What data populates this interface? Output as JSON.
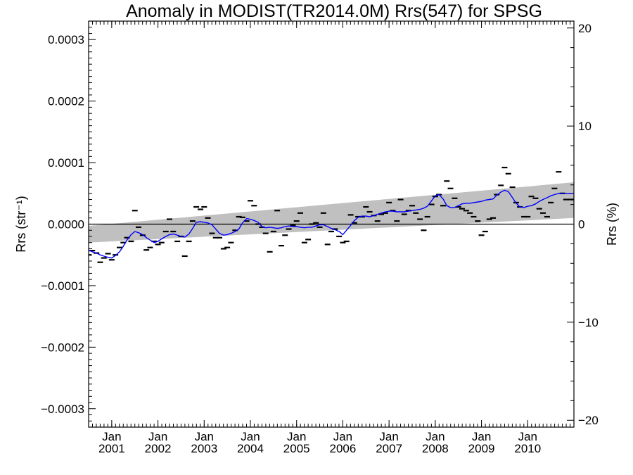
{
  "chart_data": {
    "type": "line",
    "title": "Anomaly in MODIST(TR2014.0M) Rrs(547) for SPSG",
    "ylabel": "Rrs (str⁻¹)",
    "y2label": "Rrs (%)",
    "xlabel": "",
    "ylim": [
      -0.00033,
      0.00033
    ],
    "y2lim": [
      -20.7,
      20.7
    ],
    "xlim": [
      2000.5,
      2011.0
    ],
    "yticks": [
      -0.0003,
      -0.0002,
      -0.0001,
      0.0,
      0.0001,
      0.0002,
      0.0003
    ],
    "yticklabels": [
      "−0.0003",
      "−0.0002",
      "−0.0001",
      "0.0000",
      "0.0001",
      "0.0002",
      "0.0003"
    ],
    "y2ticks": [
      -20,
      -10,
      0,
      10,
      20
    ],
    "y2ticklabels": [
      "−20",
      "−10",
      "0",
      "10",
      "20"
    ],
    "xticks": [
      {
        "value": 2001,
        "month": "Jan",
        "year": "2001"
      },
      {
        "value": 2002,
        "month": "Jan",
        "year": "2002"
      },
      {
        "value": 2003,
        "month": "Jan",
        "year": "2003"
      },
      {
        "value": 2004,
        "month": "Jan",
        "year": "2004"
      },
      {
        "value": 2005,
        "month": "Jan",
        "year": "2005"
      },
      {
        "value": 2006,
        "month": "Jan",
        "year": "2006"
      },
      {
        "value": 2007,
        "month": "Jan",
        "year": "2007"
      },
      {
        "value": 2008,
        "month": "Jan",
        "year": "2008"
      },
      {
        "value": 2009,
        "month": "Jan",
        "year": "2009"
      },
      {
        "value": 2010,
        "month": "Jan",
        "year": "2010"
      }
    ],
    "zero_line": 0,
    "band": {
      "color": "#c0c0c0",
      "upper": [
        [
          2000.5,
          -3e-06
        ],
        [
          2011.0,
          6.8e-05
        ]
      ],
      "lower": [
        [
          2000.5,
          -3e-05
        ],
        [
          2011.0,
          1e-05
        ]
      ]
    },
    "series": [
      {
        "type": "line",
        "color": "#0000ff",
        "x": [
          2000.5,
          2000.58,
          2000.67,
          2000.75,
          2000.83,
          2000.92,
          2001.0,
          2001.08,
          2001.17,
          2001.25,
          2001.33,
          2001.42,
          2001.5,
          2001.58,
          2001.67,
          2001.75,
          2001.83,
          2001.92,
          2002.0,
          2002.08,
          2002.17,
          2002.25,
          2002.33,
          2002.42,
          2002.5,
          2002.58,
          2002.67,
          2002.75,
          2002.83,
          2002.92,
          2003.0,
          2003.08,
          2003.17,
          2003.25,
          2003.33,
          2003.42,
          2003.5,
          2003.58,
          2003.67,
          2003.75,
          2003.83,
          2003.92,
          2004.0,
          2004.08,
          2004.17,
          2004.25,
          2004.33,
          2004.42,
          2004.5,
          2004.58,
          2004.67,
          2004.75,
          2004.83,
          2004.92,
          2005.0,
          2005.08,
          2005.17,
          2005.25,
          2005.33,
          2005.42,
          2005.5,
          2005.58,
          2005.67,
          2005.75,
          2005.83,
          2005.92,
          2006.0,
          2006.08,
          2006.17,
          2006.25,
          2006.33,
          2006.42,
          2006.5,
          2006.58,
          2006.67,
          2006.75,
          2006.83,
          2006.92,
          2007.0,
          2007.08,
          2007.17,
          2007.25,
          2007.33,
          2007.42,
          2007.5,
          2007.58,
          2007.67,
          2007.75,
          2007.83,
          2007.92,
          2008.0,
          2008.08,
          2008.17,
          2008.25,
          2008.33,
          2008.42,
          2008.5,
          2008.58,
          2008.67,
          2008.75,
          2008.83,
          2008.92,
          2009.0,
          2009.08,
          2009.17,
          2009.25,
          2009.33,
          2009.42,
          2009.5,
          2009.58,
          2009.67,
          2009.75,
          2009.83,
          2009.92,
          2010.0,
          2010.08,
          2010.17,
          2010.25,
          2010.33,
          2010.42,
          2010.5,
          2010.58,
          2010.67,
          2010.75,
          2010.83,
          2010.92,
          2011.0
        ],
        "y": [
          -4.2e-05,
          -4.5e-05,
          -4.7e-05,
          -5e-05,
          -5.2e-05,
          -5.4e-05,
          -5.5e-05,
          -5.1e-05,
          -4.5e-05,
          -3.6e-05,
          -2.6e-05,
          -1.7e-05,
          -1.2e-05,
          -1.4e-05,
          -1.7e-05,
          -2.2e-05,
          -2.6e-05,
          -3e-05,
          -2.8e-05,
          -2.4e-05,
          -2e-05,
          -1.7e-05,
          -1.6e-05,
          -1.8e-05,
          -2e-05,
          -2.1e-05,
          -1.6e-05,
          -7e-06,
          3e-06,
          4e-06,
          3e-06,
          2e-06,
          -1e-06,
          -8e-06,
          -1.5e-05,
          -1.8e-05,
          -1.7e-05,
          -1.5e-05,
          -1.2e-05,
          -8e-06,
          2e-06,
          9e-06,
          8e-06,
          6e-06,
          3e-06,
          -4e-06,
          -6e-06,
          -5e-06,
          -6e-06,
          -7e-06,
          -6e-06,
          -4e-06,
          -3e-06,
          -4e-06,
          -4e-06,
          -5e-06,
          -6e-06,
          -5e-06,
          -5e-06,
          -3e-06,
          -1e-06,
          -1e-06,
          -4e-06,
          -7e-06,
          -9e-06,
          -1.2e-05,
          -1.7e-05,
          -1e-05,
          -2e-06,
          6e-06,
          1.1e-05,
          1.3e-05,
          1.3e-05,
          1.2e-05,
          1.4e-05,
          1.6e-05,
          1.8e-05,
          2e-05,
          2.1e-05,
          2.1e-05,
          2e-05,
          2e-05,
          2e-05,
          2.1e-05,
          2.2e-05,
          2.3e-05,
          2.4e-05,
          2.6e-05,
          2.9e-05,
          3.8e-05,
          4.6e-05,
          4.8e-05,
          4.1e-05,
          3e-05,
          2.7e-05,
          2.7e-05,
          3e-05,
          3.3e-05,
          3.4e-05,
          3.4e-05,
          3.5e-05,
          3.6e-05,
          3.7e-05,
          3.9e-05,
          4e-05,
          4.1e-05,
          4.7e-05,
          5.2e-05,
          5.5e-05,
          5.3e-05,
          4.3e-05,
          3.4e-05,
          2.8e-05,
          2.7e-05,
          2.9e-05,
          3e-05,
          3.3e-05,
          3.7e-05,
          4e-05,
          4.3e-05,
          4.6e-05,
          4.8e-05,
          5e-05,
          5e-05,
          5e-05,
          5e-05,
          5e-05
        ]
      },
      {
        "type": "marker",
        "marker": "dash",
        "color": "#000000",
        "x": [
          2000.5,
          2000.58,
          2000.67,
          2000.75,
          2000.83,
          2000.92,
          2001.0,
          2001.08,
          2001.17,
          2001.25,
          2001.33,
          2001.42,
          2001.5,
          2001.58,
          2001.67,
          2001.75,
          2001.83,
          2001.92,
          2002.0,
          2002.08,
          2002.17,
          2002.25,
          2002.33,
          2002.42,
          2002.5,
          2002.58,
          2002.67,
          2002.75,
          2002.83,
          2002.92,
          2003.0,
          2003.08,
          2003.17,
          2003.25,
          2003.33,
          2003.42,
          2003.5,
          2003.58,
          2003.67,
          2003.75,
          2003.83,
          2003.92,
          2004.0,
          2004.08,
          2004.17,
          2004.25,
          2004.33,
          2004.42,
          2004.5,
          2004.58,
          2004.67,
          2004.75,
          2004.83,
          2004.92,
          2005.0,
          2005.08,
          2005.17,
          2005.25,
          2005.33,
          2005.42,
          2005.5,
          2005.58,
          2005.67,
          2005.75,
          2005.83,
          2005.92,
          2006.0,
          2006.08,
          2006.17,
          2006.25,
          2006.33,
          2006.42,
          2006.5,
          2006.58,
          2006.67,
          2006.75,
          2006.83,
          2006.92,
          2007.0,
          2007.08,
          2007.17,
          2007.25,
          2007.33,
          2007.42,
          2007.5,
          2007.58,
          2007.67,
          2007.75,
          2007.83,
          2007.92,
          2008.0,
          2008.08,
          2008.17,
          2008.25,
          2008.33,
          2008.42,
          2008.5,
          2008.58,
          2008.67,
          2008.75,
          2008.83,
          2008.92,
          2009.0,
          2009.08,
          2009.17,
          2009.25,
          2009.33,
          2009.42,
          2009.5,
          2009.58,
          2009.67,
          2009.75,
          2009.83,
          2009.92,
          2010.0,
          2010.08,
          2010.17,
          2010.25,
          2010.33,
          2010.42,
          2010.5,
          2010.58,
          2010.67,
          2010.75,
          2010.83,
          2010.92,
          2011.0
        ],
        "y": [
          -5e-05,
          -4.3e-05,
          -4.7e-05,
          -6.2e-05,
          -5.5e-05,
          -4.8e-05,
          -5.8e-05,
          -5e-05,
          -3.8e-05,
          -3e-05,
          -2.2e-05,
          -2.8e-05,
          2.2e-05,
          -5e-06,
          -1.8e-05,
          -4.2e-05,
          -3.8e-05,
          -2.8e-05,
          -3.3e-05,
          -3e-05,
          -1.2e-05,
          8e-06,
          -1.2e-05,
          -2.8e-05,
          -2e-05,
          -5.2e-05,
          -2.8e-05,
          5e-06,
          2.8e-05,
          2.4e-05,
          2.8e-05,
          1e-05,
          -1.5e-05,
          -2.2e-05,
          -2.2e-05,
          -4e-05,
          -3.8e-05,
          -3e-05,
          -1e-05,
          1.2e-05,
          1.1e-05,
          5e-06,
          3.8e-05,
          3e-05,
          0.0,
          -5e-06,
          -1.5e-05,
          -4.5e-05,
          -1.2e-05,
          2.2e-05,
          -3.5e-05,
          -1.8e-05,
          -8e-06,
          -2e-06,
          5e-06,
          1.8e-05,
          -3e-05,
          -2.5e-05,
          0.0,
          2e-06,
          -5e-06,
          1.8e-05,
          -3.3e-05,
          -1.2e-05,
          -8e-06,
          -2e-05,
          -3e-05,
          -2.8e-05,
          1.5e-05,
          2e-06,
          1.2e-05,
          1.2e-05,
          2.8e-05,
          2e-05,
          1.4e-05,
          5e-06,
          1.6e-05,
          1.8e-05,
          3.5e-05,
          2.2e-05,
          5e-06,
          4e-05,
          1.6e-05,
          2.2e-05,
          3e-05,
          1.8e-05,
          8e-06,
          -1e-05,
          1.2e-05,
          3.2e-05,
          4.5e-05,
          4.8e-05,
          3e-05,
          7e-05,
          5.8e-05,
          4.2e-05,
          2.8e-05,
          2.5e-05,
          2.2e-05,
          1.8e-05,
          1.2e-05,
          5e-06,
          -1.8e-05,
          -1.2e-05,
          8e-06,
          1e-05,
          4.8e-05,
          6.3e-05,
          9.2e-05,
          8.2e-05,
          6e-05,
          3.5e-05,
          2.8e-05,
          1.2e-05,
          1.2e-05,
          4.5e-05,
          4.2e-05,
          2.5e-05,
          1.8e-05,
          1.2e-05,
          3.5e-05,
          5.8e-05,
          8.5e-05,
          5e-05,
          4e-05,
          4e-05,
          4e-05
        ]
      }
    ]
  },
  "colors": {
    "band": "#c0c0c0",
    "series_line": "#0000ff",
    "markers": "#000000",
    "axes": "#000000"
  }
}
